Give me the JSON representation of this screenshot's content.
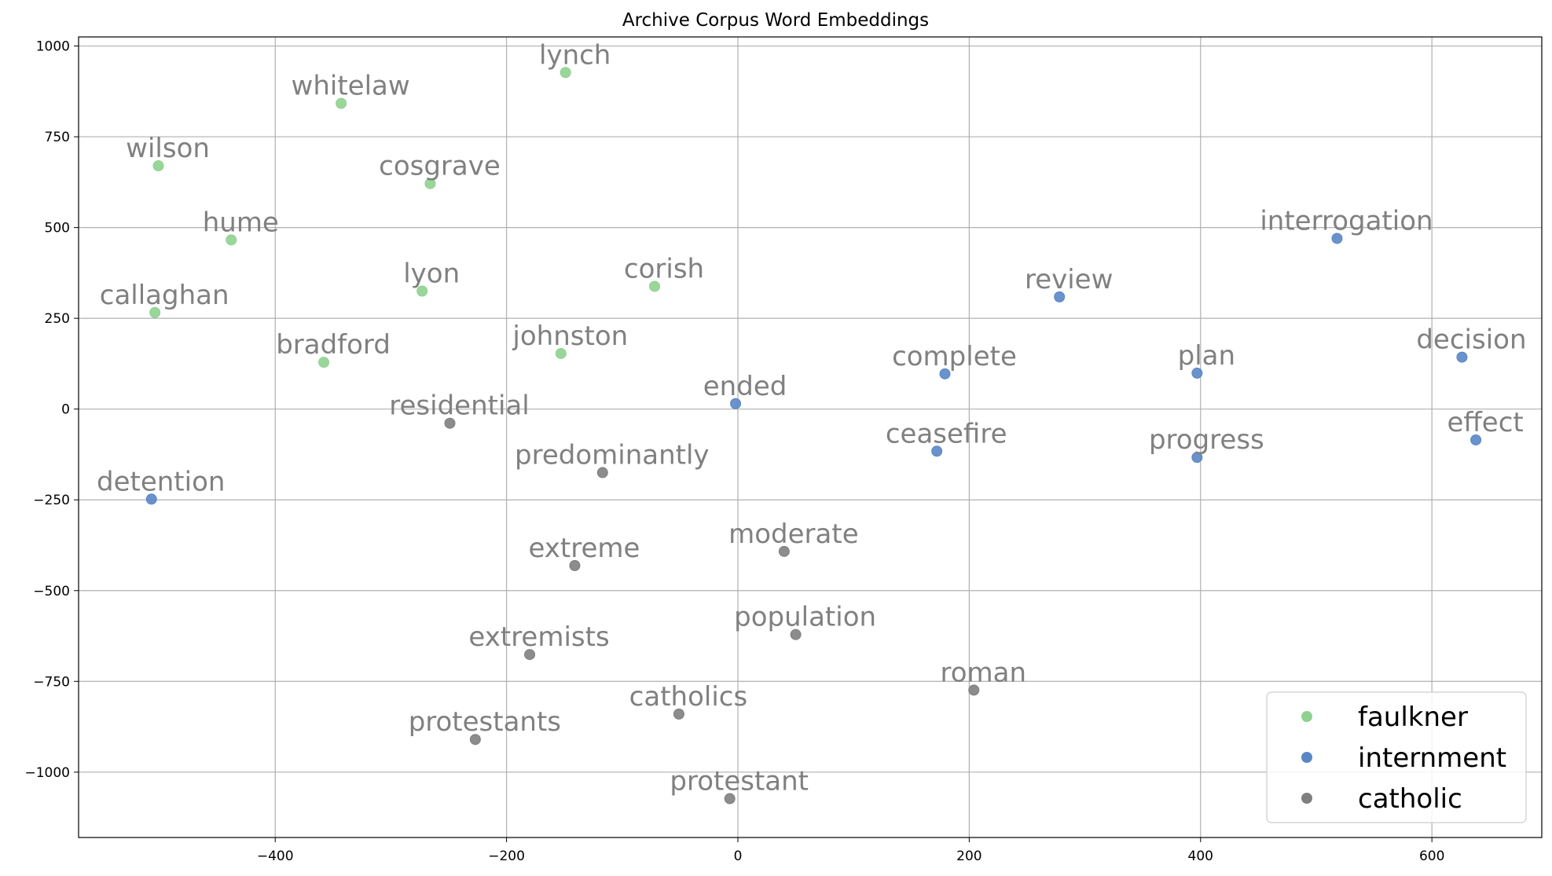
{
  "chart_data": {
    "type": "scatter",
    "title": "Archive Corpus Word Embeddings",
    "xlabel": "",
    "ylabel": "",
    "xlim": [
      -570,
      695
    ],
    "ylim": [
      -1180,
      1025
    ],
    "xticks": [
      -400,
      -200,
      0,
      200,
      400,
      600
    ],
    "yticks": [
      -1000,
      -750,
      -500,
      -250,
      0,
      250,
      500,
      750,
      1000
    ],
    "grid": true,
    "legend_position": "bottom-right",
    "series": [
      {
        "name": "faulkner",
        "color": "#8fd18f",
        "points": [
          {
            "label": "lynch",
            "x": -149,
            "y": 927
          },
          {
            "label": "whitelaw",
            "x": -343,
            "y": 842
          },
          {
            "label": "wilson",
            "x": -501,
            "y": 670
          },
          {
            "label": "cosgrave",
            "x": -266,
            "y": 621
          },
          {
            "label": "hume",
            "x": -438,
            "y": 466
          },
          {
            "label": "lyon",
            "x": -273,
            "y": 325
          },
          {
            "label": "corish",
            "x": -72,
            "y": 338
          },
          {
            "label": "callaghan",
            "x": -504,
            "y": 266
          },
          {
            "label": "bradford",
            "x": -358,
            "y": 129
          },
          {
            "label": "johnston",
            "x": -153,
            "y": 153
          }
        ]
      },
      {
        "name": "internment",
        "color": "#5a86c6",
        "points": [
          {
            "label": "interrogation",
            "x": 518,
            "y": 470
          },
          {
            "label": "review",
            "x": 278,
            "y": 309
          },
          {
            "label": "decision",
            "x": 626,
            "y": 143
          },
          {
            "label": "complete",
            "x": 179,
            "y": 97
          },
          {
            "label": "plan",
            "x": 397,
            "y": 99
          },
          {
            "label": "ended",
            "x": -2,
            "y": 15
          },
          {
            "label": "effect",
            "x": 638,
            "y": -85
          },
          {
            "label": "ceasefire",
            "x": 172,
            "y": -116
          },
          {
            "label": "progress",
            "x": 397,
            "y": -133
          },
          {
            "label": "detention",
            "x": -507,
            "y": -248
          }
        ]
      },
      {
        "name": "catholic",
        "color": "#7f7f7f",
        "points": [
          {
            "label": "residential",
            "x": -249,
            "y": -39
          },
          {
            "label": "predominantly",
            "x": -117,
            "y": -175
          },
          {
            "label": "extreme",
            "x": -141,
            "y": -431
          },
          {
            "label": "moderate",
            "x": 40,
            "y": -392
          },
          {
            "label": "extremists",
            "x": -180,
            "y": -676
          },
          {
            "label": "population",
            "x": 50,
            "y": -621
          },
          {
            "label": "roman",
            "x": 204,
            "y": -774
          },
          {
            "label": "catholics",
            "x": -51,
            "y": -840
          },
          {
            "label": "protestants",
            "x": -227,
            "y": -910
          },
          {
            "label": "protestant",
            "x": -7,
            "y": -1073
          }
        ]
      }
    ]
  }
}
